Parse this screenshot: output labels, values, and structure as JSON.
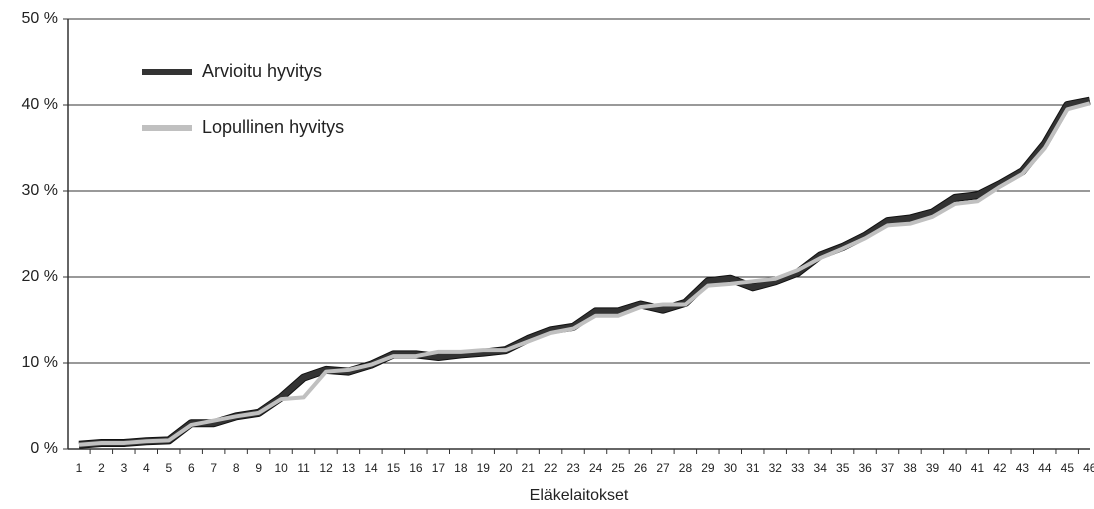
{
  "chart_data": {
    "type": "line",
    "x_label": "Eläkelaitokset",
    "categories": [
      "1",
      "2",
      "3",
      "4",
      "5",
      "6",
      "7",
      "8",
      "9",
      "10",
      "11",
      "12",
      "13",
      "14",
      "15",
      "16",
      "17",
      "18",
      "19",
      "20",
      "21",
      "22",
      "23",
      "24",
      "25",
      "26",
      "27",
      "28",
      "29",
      "30",
      "31",
      "32",
      "33",
      "34",
      "35",
      "36",
      "37",
      "38",
      "39",
      "40",
      "41",
      "42",
      "43",
      "44",
      "45",
      "46"
    ],
    "series": [
      {
        "name": "Arvioitu hyvitys",
        "color": "#333333",
        "values": [
          0.5,
          0.7,
          0.7,
          0.9,
          1.0,
          3.0,
          3.0,
          3.8,
          4.2,
          6.0,
          8.3,
          9.2,
          9.0,
          9.8,
          11.0,
          11.0,
          10.7,
          11.0,
          11.2,
          11.5,
          12.8,
          13.8,
          14.2,
          16.0,
          16.0,
          16.8,
          16.2,
          17.0,
          19.5,
          19.8,
          18.8,
          19.5,
          20.5,
          22.5,
          23.5,
          24.8,
          26.5,
          26.8,
          27.5,
          29.2,
          29.5,
          30.8,
          32.3,
          35.5,
          40.0,
          40.5
        ]
      },
      {
        "name": "Lopullinen hyvitys",
        "color": "#c0c0c0",
        "values": [
          0.5,
          0.7,
          0.7,
          0.9,
          1.0,
          2.8,
          3.3,
          3.8,
          4.2,
          5.8,
          6.0,
          9.0,
          9.2,
          9.8,
          10.8,
          10.8,
          11.3,
          11.3,
          11.5,
          11.5,
          12.5,
          13.5,
          14.0,
          15.5,
          15.5,
          16.5,
          16.8,
          16.8,
          19.0,
          19.2,
          19.5,
          19.8,
          20.8,
          22.2,
          23.3,
          24.5,
          26.0,
          26.2,
          27.0,
          28.5,
          28.8,
          30.5,
          32.0,
          35.0,
          39.5,
          40.2
        ]
      }
    ],
    "ylim": [
      0,
      50
    ],
    "yticks": [
      {
        "value": 0,
        "label": "0 %"
      },
      {
        "value": 10,
        "label": "10 %"
      },
      {
        "value": 20,
        "label": "20 %"
      },
      {
        "value": 30,
        "label": "30 %"
      },
      {
        "value": 40,
        "label": "40 %"
      },
      {
        "value": 50,
        "label": "50 %"
      }
    ],
    "grid": true,
    "legend": "upper left"
  }
}
